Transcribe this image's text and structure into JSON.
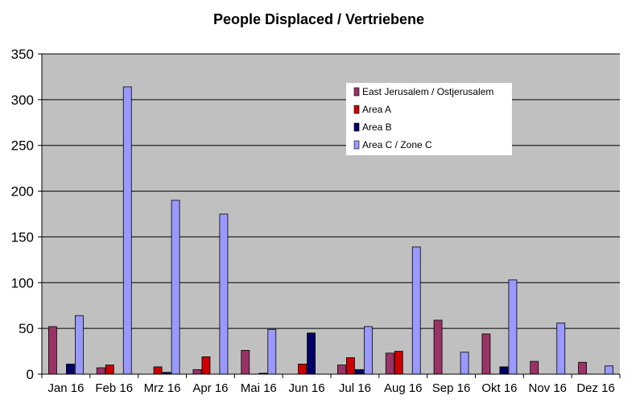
{
  "chart_data": {
    "type": "bar",
    "title": "People Displaced / Vertriebene",
    "xlabel": "",
    "ylabel": "",
    "ylim": [
      0,
      350
    ],
    "yticks": [
      "0",
      "50",
      "100",
      "150",
      "200",
      "250",
      "300",
      "350"
    ],
    "grid": "horizontal",
    "legend_position": "top-right",
    "categories": [
      "Jan 16",
      "Feb 16",
      "Mrz 16",
      "Apr 16",
      "Mai 16",
      "Jun 16",
      "Jul 16",
      "Aug 16",
      "Sep 16",
      "Okt 16",
      "Nov 16",
      "Dez 16"
    ],
    "series": [
      {
        "name": "East Jerusalem / Ostjerusalem",
        "color": "#993366",
        "values": [
          52,
          7,
          0,
          5,
          26,
          0,
          10,
          23,
          59,
          44,
          14,
          13
        ]
      },
      {
        "name": "Area A",
        "color": "#cc0000",
        "values": [
          0,
          10,
          8,
          19,
          0,
          11,
          18,
          25,
          0,
          0,
          0,
          0
        ]
      },
      {
        "name": "Area B",
        "color": "#000066",
        "values": [
          11,
          0,
          2,
          0,
          1,
          45,
          5,
          0,
          0,
          8,
          0,
          0
        ]
      },
      {
        "name": "Area C / Zone C",
        "color": "#9999ff",
        "values": [
          64,
          314,
          190,
          175,
          49,
          0,
          52,
          139,
          24,
          103,
          56,
          9
        ]
      }
    ],
    "colors": {
      "plot_background": "#c0c0c0",
      "gridline": "#000000",
      "legend_background": "#ffffff"
    }
  }
}
